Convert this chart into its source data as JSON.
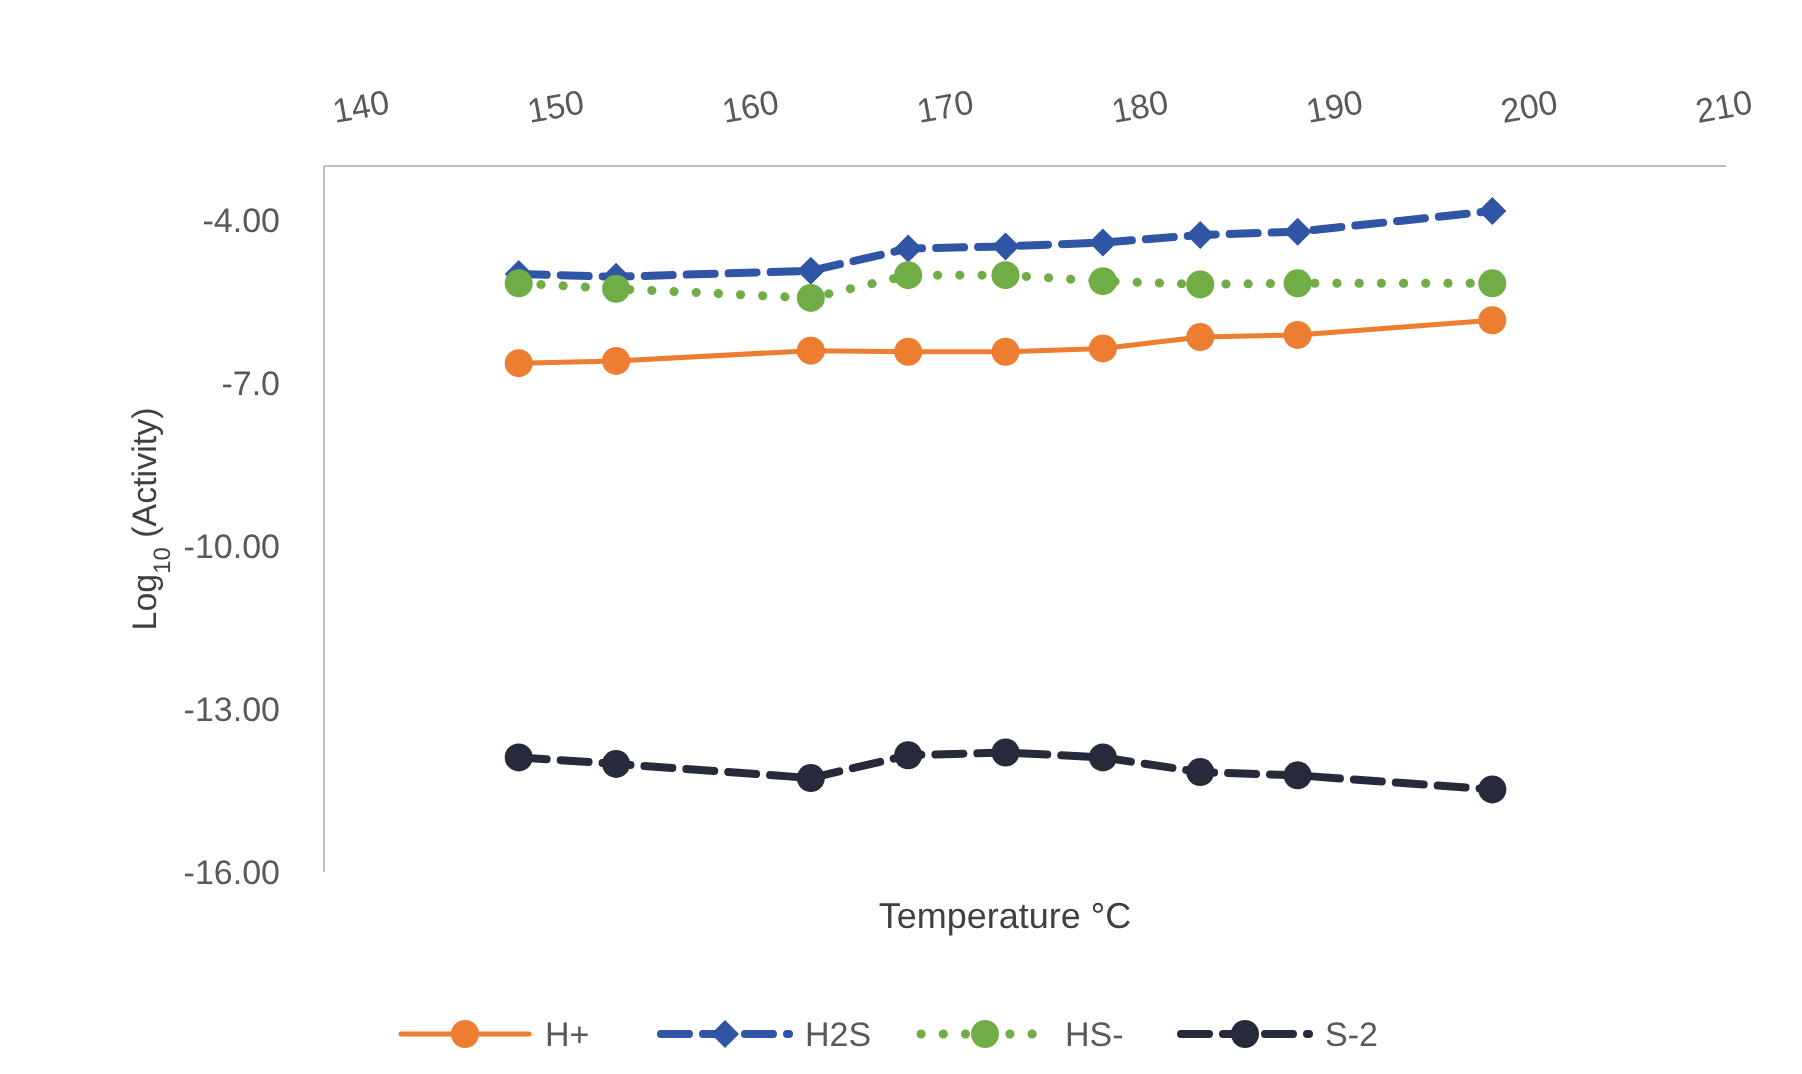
{
  "chart_data": {
    "type": "line",
    "xlabel": "Temperature °C",
    "ylabel": "Log$_{10}$ (Activity)",
    "x": [
      148,
      153,
      163,
      168,
      173,
      178,
      183,
      188,
      198
    ],
    "xlim": [
      138,
      210
    ],
    "xticks": [
      140,
      150,
      160,
      170,
      180,
      190,
      200,
      210
    ],
    "ylim": [
      -16,
      -3
    ],
    "yticks": [
      {
        "value": -4,
        "label": "-4.00"
      },
      {
        "value": -7,
        "label": "-7.0"
      },
      {
        "value": -10,
        "label": "-10.00"
      },
      {
        "value": -13,
        "label": "-13.00"
      },
      {
        "value": -16,
        "label": "-16.00"
      }
    ],
    "grid": false,
    "legend": "bottom",
    "series": [
      {
        "name": "H+",
        "color": "#ed7d31",
        "marker": "circle",
        "line_style": "solid",
        "values": [
          -6.63,
          -6.59,
          -6.4,
          -6.42,
          -6.42,
          -6.36,
          -6.15,
          -6.11,
          -5.84
        ]
      },
      {
        "name": "H2S",
        "color": "#2f55a4",
        "marker": "diamond",
        "line_style": "dashed",
        "values": [
          -4.99,
          -5.04,
          -4.93,
          -4.52,
          -4.48,
          -4.41,
          -4.27,
          -4.21,
          -3.83
        ]
      },
      {
        "name": "HS-",
        "color": "#70ad47",
        "marker": "circle",
        "line_style": "dotted",
        "values": [
          -5.16,
          -5.26,
          -5.43,
          -5.01,
          -5.01,
          -5.12,
          -5.18,
          -5.16,
          -5.16
        ]
      },
      {
        "name": "S-2",
        "color": "#262a3a",
        "marker": "circle",
        "line_style": "dashed",
        "values": [
          -13.89,
          -14.01,
          -14.27,
          -13.85,
          -13.8,
          -13.89,
          -14.16,
          -14.22,
          -14.48
        ]
      }
    ]
  }
}
